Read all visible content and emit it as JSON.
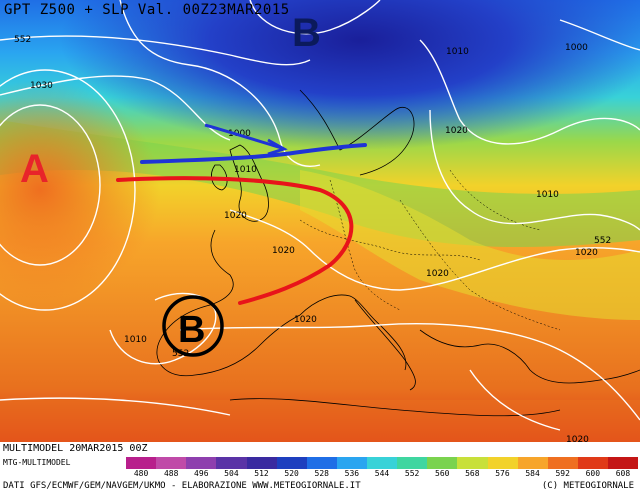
{
  "title": "GPT Z500 + SLP Val. 00Z23MAR2015",
  "footer_run": "MULTIMODEL 20MAR2015 00Z",
  "footer_model": "MTG-MULTIMODEL",
  "credit_left": "DATI GFS/ECMWF/GEM/NAVGEM/UKMO - ELABORAZIONE WWW.METEOGIORNALE.IT",
  "credit_right": "(C) METEOGIORNALE",
  "pressure_centers": [
    {
      "symbol": "A",
      "color": "#e8242a"
    },
    {
      "symbol": "B",
      "color": "#0b1a5c"
    },
    {
      "symbol": "B",
      "color": "#000000"
    }
  ],
  "isobar_labels": [
    "552",
    "1030",
    "1000",
    "1010",
    "1020",
    "1010",
    "1020",
    "1000",
    "1010",
    "1020",
    "1020",
    "552",
    "1020",
    "1020",
    "1010",
    "552",
    "1020"
  ],
  "scale": {
    "ticks": [
      "480",
      "488",
      "496",
      "504",
      "512",
      "520",
      "528",
      "536",
      "544",
      "552",
      "560",
      "568",
      "576",
      "584",
      "592",
      "600",
      "608"
    ],
    "colors": [
      "#b81f8c",
      "#c04aa8",
      "#8e3fae",
      "#5a33a6",
      "#3a2aa0",
      "#1e3fbf",
      "#1f6ee6",
      "#2aa5f0",
      "#38d2d8",
      "#3fd6a0",
      "#7ad34e",
      "#c8e03a",
      "#f2d22a",
      "#f7a52a",
      "#ef6f20",
      "#e03a18",
      "#c41616"
    ]
  },
  "annotation_colors": {
    "warm_front": "#e8141a",
    "cold_flow": "#1f33d6"
  }
}
